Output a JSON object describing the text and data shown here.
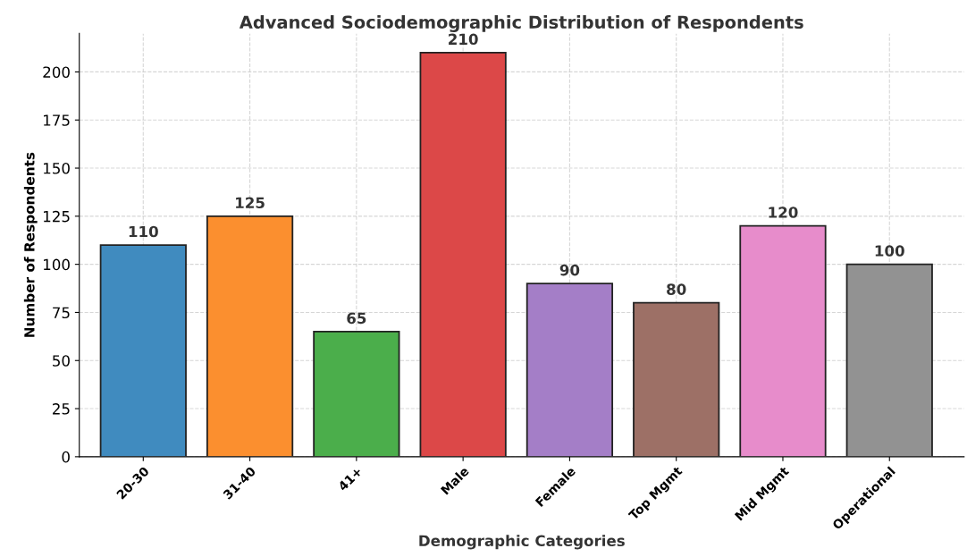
{
  "chart_data": {
    "type": "bar",
    "title": "Advanced Sociodemographic Distribution of Respondents",
    "xlabel": "Demographic Categories",
    "ylabel": "Number of Respondents",
    "categories": [
      "20-30",
      "31-40",
      "41+",
      "Male",
      "Female",
      "Top Mgmt",
      "Mid Mgmt",
      "Operational"
    ],
    "values": [
      110,
      125,
      65,
      210,
      90,
      80,
      120,
      100
    ],
    "colors": [
      "#408bbf",
      "#fb8f2f",
      "#4bae4b",
      "#dc4848",
      "#a47ec7",
      "#9d7066",
      "#e78ccb",
      "#929292"
    ],
    "ylim": [
      0,
      220
    ],
    "yticks": [
      0,
      25,
      50,
      75,
      100,
      125,
      150,
      175,
      200
    ],
    "grid": true,
    "data_labels": true
  }
}
